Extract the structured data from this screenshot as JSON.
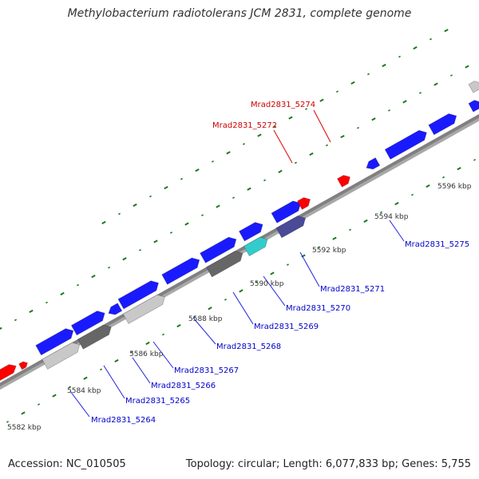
{
  "title": "Methylobacterium radiotolerans JCM 2831, complete genome",
  "footer": {
    "accession": "Accession: NC_010505",
    "topology": "Topology: circular; Length: 6,077,833 bp; Genes: 5,755"
  },
  "colors": {
    "backbone": "#808080",
    "gene_blue": "#1a1aff",
    "gene_red": "#ff0000",
    "gene_gray_light": "#c8c8c8",
    "gene_gray_dark": "#666666",
    "gene_cyan": "#33cccc",
    "gene_navy": "#4a4a99",
    "tick_green": "#1a7a1a",
    "label_blue": "#0000cc",
    "label_red": "#cc0000",
    "leader_blue": "#2222dd",
    "leader_red": "#dd0000"
  },
  "scale_labels": [
    "5582 kbp",
    "5584 kbp",
    "5586 kbp",
    "5588 kbp",
    "5590 kbp",
    "5592 kbp",
    "5594 kbp",
    "5596 kbp"
  ],
  "gene_labels": [
    {
      "id": "g5264",
      "text": "Mrad2831_5264",
      "color": "blue"
    },
    {
      "id": "g5265",
      "text": "Mrad2831_5265",
      "color": "blue"
    },
    {
      "id": "g5266",
      "text": "Mrad2831_5266",
      "color": "blue"
    },
    {
      "id": "g5267",
      "text": "Mrad2831_5267",
      "color": "blue"
    },
    {
      "id": "g5268",
      "text": "Mrad2831_5268",
      "color": "blue"
    },
    {
      "id": "g5269",
      "text": "Mrad2831_5269",
      "color": "blue"
    },
    {
      "id": "g5270",
      "text": "Mrad2831_5270",
      "color": "blue"
    },
    {
      "id": "g5271",
      "text": "Mrad2831_5271",
      "color": "blue"
    },
    {
      "id": "g5275",
      "text": "Mrad2831_5275",
      "color": "blue"
    },
    {
      "id": "g5272",
      "text": "Mrad2831_5272",
      "color": "red"
    },
    {
      "id": "g5274",
      "text": "Mrad2831_5274",
      "color": "red"
    }
  ]
}
